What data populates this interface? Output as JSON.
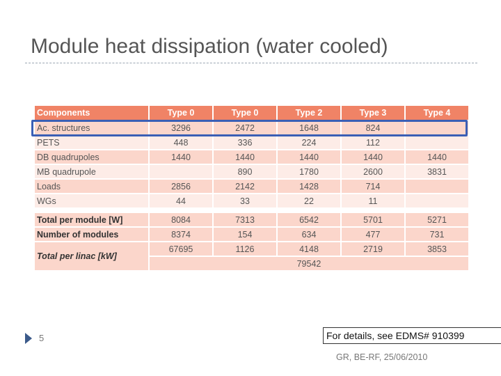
{
  "slide": {
    "title": "Module heat dissipation (water cooled)",
    "page_number": "5",
    "footer": "GR, BE-RF, 25/06/2010",
    "note": "For details, see EDMS# 910399"
  },
  "table": {
    "headers": [
      "Components",
      "Type 0",
      "Type 0",
      "Type 2",
      "Type 3",
      "Type 4"
    ],
    "rows": [
      {
        "label": "Ac. structures",
        "values": [
          "3296",
          "2472",
          "1648",
          "824",
          ""
        ]
      },
      {
        "label": "PETS",
        "values": [
          "448",
          "336",
          "224",
          "112",
          ""
        ]
      },
      {
        "label": "DB quadrupoles",
        "values": [
          "1440",
          "1440",
          "1440",
          "1440",
          "1440"
        ]
      },
      {
        "label": "MB quadrupole",
        "values": [
          "",
          "890",
          "1780",
          "2600",
          "3831"
        ]
      },
      {
        "label": "Loads",
        "values": [
          "2856",
          "2142",
          "1428",
          "714",
          ""
        ]
      },
      {
        "label": "WGs",
        "values": [
          "44",
          "33",
          "22",
          "11",
          ""
        ]
      }
    ],
    "total_per_module": {
      "label": "Total per module [W]",
      "values": [
        "8084",
        "7313",
        "6542",
        "5701",
        "5271"
      ]
    },
    "number_of_modules": {
      "label": "Number of modules",
      "values": [
        "8374",
        "154",
        "634",
        "477",
        "731"
      ]
    },
    "total_per_linac": {
      "label": "Total per linac [kW]",
      "values": [
        "67695",
        "1126",
        "4148",
        "2719",
        "3853"
      ],
      "grand_total": "79542"
    }
  },
  "colors": {
    "header_bg": "#f08366",
    "row_dark": "#fbd6cb",
    "row_light": "#fdece7",
    "highlight_border": "#3a5fb5"
  },
  "icons": {
    "bullet": "triangle-bullet-icon"
  }
}
